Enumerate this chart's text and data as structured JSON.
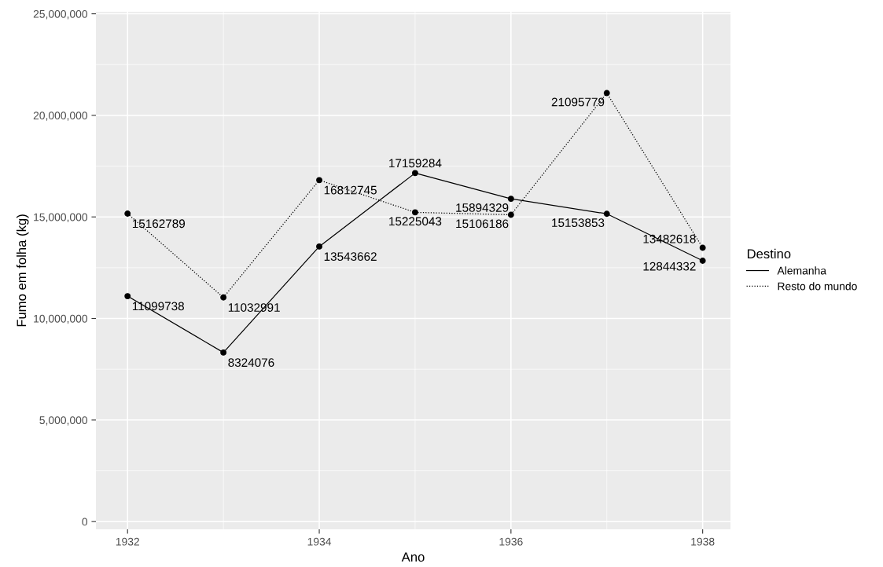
{
  "chart_data": {
    "type": "line",
    "xlabel": "Ano",
    "ylabel": "Fumo em folha (kg)",
    "legend_title": "Destino",
    "legend": "right",
    "grid": true,
    "marker": "circle",
    "data_labels": true,
    "x": [
      1932,
      1933,
      1934,
      1935,
      1936,
      1937,
      1938
    ],
    "series": [
      {
        "name": "Alemanha",
        "color": "#000000",
        "line_style": "solid",
        "values": [
          11099738,
          8324076,
          13543662,
          17159284,
          15894329,
          15153853,
          12844332
        ]
      },
      {
        "name": "Resto do mundo",
        "color": "#000000",
        "line_style": "dotted",
        "values": [
          15162789,
          11032991,
          16812745,
          15225043,
          15106186,
          21095779,
          13482618
        ]
      }
    ],
    "xlim": [
      1931.67,
      1938.29
    ],
    "xticks": [
      1932,
      1934,
      1936,
      1938
    ],
    "ylim": [
      -380000,
      25100000
    ],
    "yticks": [
      {
        "value": 0,
        "label": "0"
      },
      {
        "value": 5000000,
        "label": "5,000,000"
      },
      {
        "value": 10000000,
        "label": "10,000,000"
      },
      {
        "value": 15000000,
        "label": "15,000,000"
      },
      {
        "value": 20000000,
        "label": "20,000,000"
      },
      {
        "value": 25000000,
        "label": "25,000,000"
      }
    ]
  }
}
